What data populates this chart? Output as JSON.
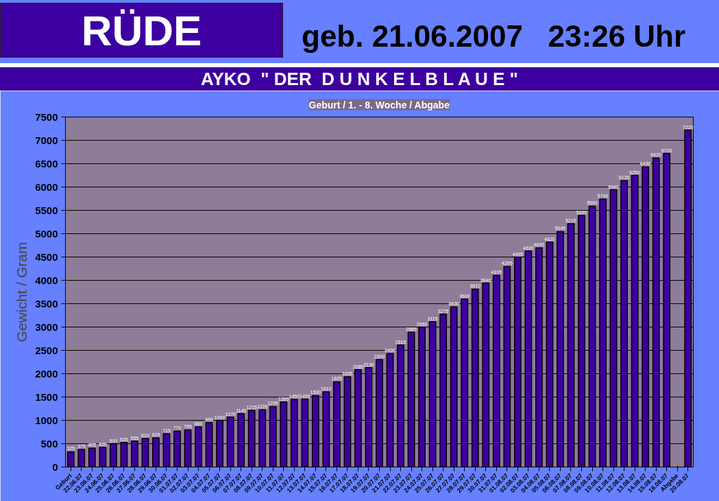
{
  "chart_data": {
    "type": "bar",
    "title": "AYKO  \" DER  D U N K E L B L A U E \"",
    "subtitle": "Geburt / 1. - 8. Woche / Abgabe",
    "annotations": [
      "RÜDE",
      "geb. 21.06.2007   23:26 Uhr"
    ],
    "ylabel": "Gewicht / Gram",
    "categories": [
      "Geburt",
      "22.06.07",
      "23.06.07",
      "24.06.07",
      "25.06.07",
      "26.06.07",
      "27.06.07",
      "28.06.07",
      "29.06.07",
      "30.06.07",
      "01.07.07",
      "02.07.07",
      "03.07.07",
      "04.07.07",
      "05.07.07",
      "06.07.07",
      "07.07.07",
      "08.07.07",
      "09.07.07",
      "10.07.07",
      "11.07.07",
      "12.07.07",
      "13.07.07",
      "14.07.07",
      "15.07.07",
      "16.07.07",
      "17.07.07",
      "18.07.07",
      "19.07.07",
      "20.07.07",
      "21.07.07",
      "22.07.07",
      "23.07.07",
      "24.07.07",
      "25.07.07",
      "26.07.07",
      "27.07.07",
      "28.07.07",
      "29.07.07",
      "30.07.07",
      "31.07.07",
      "01.08.07",
      "02.08.07",
      "03.08.07",
      "04.08.07",
      "05.08.07",
      "06.08.07",
      "07.08.07",
      "08.08.07",
      "09.08.07",
      "10.08.07",
      "11.08.07",
      "12.08.07",
      "13.08.07",
      "14.08.07",
      "15.08.07",
      "16.08.07",
      "Abgabe",
      "20.08.07"
    ],
    "values": [
      325,
      375,
      405,
      420,
      500,
      525,
      555,
      610,
      625,
      715,
      770,
      795,
      860,
      955,
      1000,
      1070,
      1145,
      1215,
      1225,
      1295,
      1395,
      1450,
      1455,
      1530,
      1610,
      1825,
      1935,
      2085,
      2130,
      2300,
      2430,
      2615,
      2885,
      2990,
      3115,
      3275,
      3430,
      3600,
      3810,
      3940,
      4105,
      4295,
      4495,
      4630,
      4695,
      4820,
      5045,
      5215,
      5390,
      5590,
      5740,
      5940,
      6135,
      6250,
      6430,
      6620,
      6720,
      null,
      7220
    ],
    "color": "#3d00a0",
    "ylim": [
      0,
      7500
    ],
    "yticks": [
      0,
      500,
      1000,
      1500,
      2000,
      2500,
      3000,
      3500,
      4000,
      4500,
      5000,
      5500,
      6000,
      6500,
      7000,
      7500
    ],
    "grid": "y",
    "data_labels": true
  }
}
